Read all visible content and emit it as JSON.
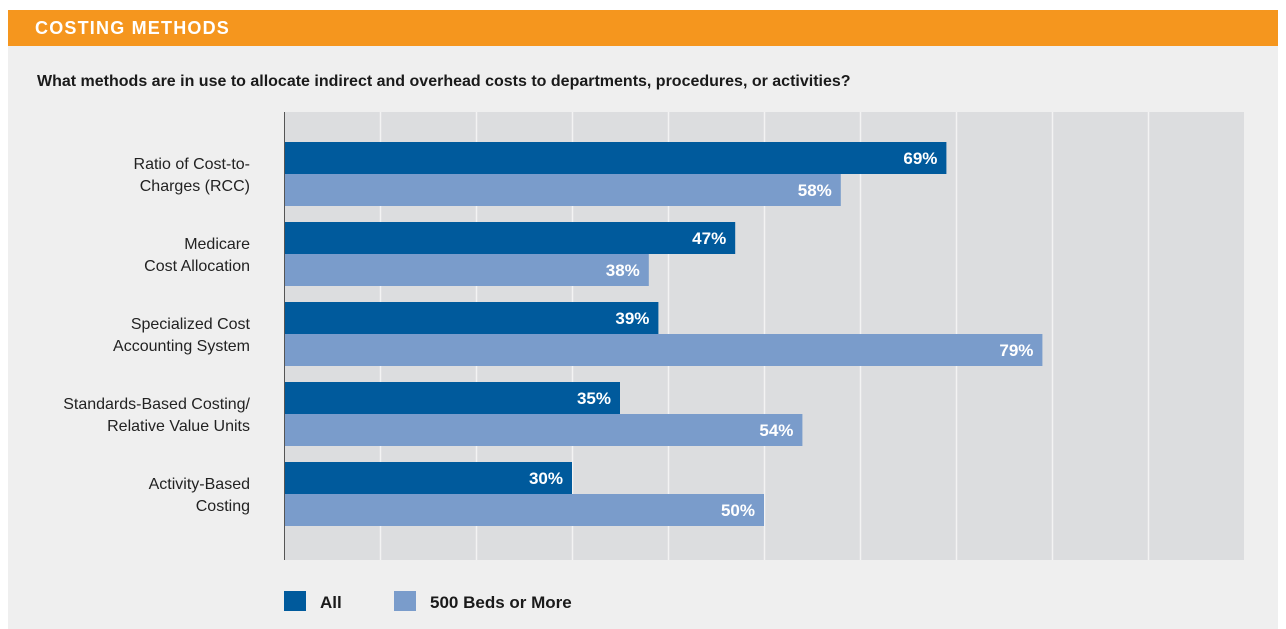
{
  "header": {
    "title": "COSTING METHODS"
  },
  "question": "What methods are in use to allocate indirect and overhead costs to departments, procedures, or activities?",
  "colors": {
    "header": "#F5961E",
    "panel": "#EFEFEF",
    "plot": "#DCDDDF",
    "series_all": "#005A9C",
    "series_500": "#7A9CCB"
  },
  "chart_data": {
    "type": "bar",
    "orientation": "horizontal",
    "categories": [
      [
        "Ratio of Cost-to-",
        "Charges (RCC)"
      ],
      [
        "Medicare",
        "Cost Allocation"
      ],
      [
        "Specialized Cost",
        "Accounting System"
      ],
      [
        "Standards-Based Costing/",
        "Relative Value Units"
      ],
      [
        "Activity-Based",
        "Costing"
      ]
    ],
    "series": [
      {
        "name": "All",
        "values": [
          69,
          47,
          39,
          35,
          30
        ],
        "labels": [
          "69%",
          "47%",
          "39%",
          "35%",
          "30%"
        ]
      },
      {
        "name": "500 Beds or More",
        "values": [
          58,
          38,
          79,
          54,
          50
        ],
        "labels": [
          "58%",
          "38%",
          "79%",
          "54%",
          "50%"
        ]
      }
    ],
    "xlim": [
      0,
      100
    ],
    "grid": true,
    "legend_position": "bottom-left"
  }
}
